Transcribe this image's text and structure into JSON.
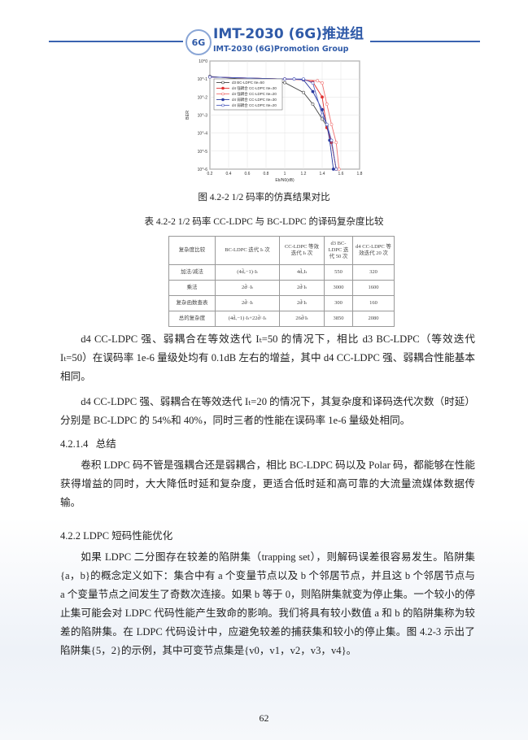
{
  "header": {
    "logo_text": "6G",
    "title": "IMT-2030 (6G)推进组",
    "subtitle": "IMT-2030 (6G)Promotion Group",
    "accent": "#2f5aa8"
  },
  "chart_data": {
    "type": "line",
    "xlabel": "Eb/N0(dB)",
    "ylabel": "BER",
    "xlim": [
      0.2,
      1.8
    ],
    "ylim": [
      1e-06,
      1
    ],
    "yscale": "log",
    "grid": true,
    "legend_placement": "left",
    "xticks": [
      "0.2",
      "0.4",
      "0.6",
      "0.8",
      "1",
      "1.2",
      "1.4",
      "1.6",
      "1.8"
    ],
    "yticks": [
      "10^0",
      "10^-1",
      "10^-2",
      "10^-3",
      "10^-4",
      "10^-5",
      "10^-6"
    ],
    "series": [
      {
        "name": "d3 BC-LDPC Ite=50",
        "color": "#444444",
        "marker": "circle-open",
        "x": [
          0.2,
          1.0,
          1.2,
          1.3,
          1.4,
          1.45,
          1.5,
          1.55
        ],
        "y": [
          0.14,
          0.063,
          0.018,
          0.004,
          0.0006,
          0.00025,
          3e-05,
          1e-06
        ]
      },
      {
        "name": "d4 强耦合 CC-LDPC Ite=30",
        "color": "#e03030",
        "marker": "star",
        "x": [
          0.2,
          1.0,
          1.2,
          1.3,
          1.4,
          1.45,
          1.5,
          1.55
        ],
        "y": [
          0.13,
          0.1,
          0.09,
          0.07,
          0.01,
          0.0002,
          3e-05,
          1e-06
        ]
      },
      {
        "name": "d4 强耦合 CC-LDPC Ite=20",
        "color": "#f07070",
        "marker": "circle-open",
        "x": [
          0.2,
          1.0,
          1.2,
          1.35,
          1.4,
          1.45,
          1.5,
          1.55,
          1.58
        ],
        "y": [
          0.13,
          0.1,
          0.09,
          0.08,
          0.06,
          0.004,
          0.0003,
          3e-05,
          1e-06
        ]
      },
      {
        "name": "d4 弱耦合 CC-LDPC Ite=30",
        "color": "#2a3aa0",
        "marker": "star",
        "x": [
          0.2,
          1.0,
          1.1,
          1.2,
          1.3,
          1.4,
          1.45,
          1.48,
          1.52
        ],
        "y": [
          0.13,
          0.1,
          0.1,
          0.09,
          0.02,
          0.002,
          0.0003,
          4e-05,
          1e-06
        ]
      },
      {
        "name": "d4 弱耦合 CC-LDPC Ite=20",
        "color": "#5060c0",
        "marker": "circle-open",
        "x": [
          0.2,
          1.0,
          1.1,
          1.2,
          1.3,
          1.4,
          1.45,
          1.5,
          1.55
        ],
        "y": [
          0.13,
          0.1,
          0.1,
          0.1,
          0.06,
          0.001,
          0.0003,
          4e-05,
          1e-06
        ]
      }
    ]
  },
  "figure_caption": "图 4.2-2 1/2 码率的仿真结果对比",
  "table": {
    "caption": "表 4.2-2 1/2 码率 CC-LDPC 与 BC-LDPC 的译码复杂度比较",
    "headers": [
      "复杂度比较",
      "BC-LDPC 迭代 Iₜ 次",
      "CC-LDPC 等效迭代 Iₜ 次",
      "d3 BC-LDPC 迭代 50 次",
      "d4 CC-LDPC 等效迭代 20 次"
    ],
    "rows": [
      [
        "加法/减法",
        "(4d̄ᵥ−1)·Iₜ",
        "4d̄ᵥIₜ",
        "550",
        "320"
      ],
      [
        "乘法",
        "2d̄ᶜ·Iₜ",
        "2d̄ᶜIₜ",
        "3000",
        "1600"
      ],
      [
        "复杂函数查表",
        "2d̄ᶜ·Iₜ",
        "2d̄ᶜIₜ",
        "300",
        "160"
      ],
      [
        "总的复杂度",
        "(4d̄ᵥ−1)·Iₜ+22d̄ᶜ·Iₜ",
        "26d̄ᶜIₜ",
        "3850",
        "2080"
      ]
    ]
  },
  "paragraphs": [
    "d4 CC-LDPC 强、弱耦合在等效迭代 Iₜ=50 的情况下，相比 d3 BC-LDPC（等效迭代 Iₜ=50）在误码率 1e-6 量级处均有 0.1dB 左右的增益，其中 d4 CC-LDPC 强、弱耦合性能基本相同。",
    "d4 CC-LDPC 强、弱耦合在等效迭代 Iₜ=20 的情况下，其复杂度和译码迭代次数（时延）分别是 BC-LDPC 的 54%和 40%，同时三者的性能在误码率 1e-6 量级处相同。"
  ],
  "section_1": {
    "number": "4.2.1.4",
    "title": "总结",
    "body": "卷积 LDPC 码不管是强耦合还是弱耦合，相比 BC-LDPC 码以及 Polar 码，都能够在性能获得增益的同时，大大降低时延和复杂度，更适合低时延和高可靠的大流量流媒体数据传输。"
  },
  "section_2": {
    "title": "4.2.2 LDPC 短码性能优化",
    "body": "如果 LDPC 二分图存在较差的陷阱集（trapping set），则解码误差很容易发生。陷阱集{a，b}的概念定义如下：集合中有 a 个变量节点以及 b 个邻居节点，并且这 b 个邻居节点与 a 个变量节点之间发生了奇数次连接。如果 b 等于 0，则陷阱集就变为停止集。一个较小的停止集可能会对 LDPC 代码性能产生致命的影响。我们将具有较小数值 a 和 b 的陷阱集称为较差的陷阱集。在 LDPC 代码设计中，应避免较差的捕获集和较小的停止集。图 4.2-3 示出了陷阱集{5，2}的示例，其中可变节点集是{v0，v1，v2，v3，v4}。"
  },
  "page_number": "62"
}
